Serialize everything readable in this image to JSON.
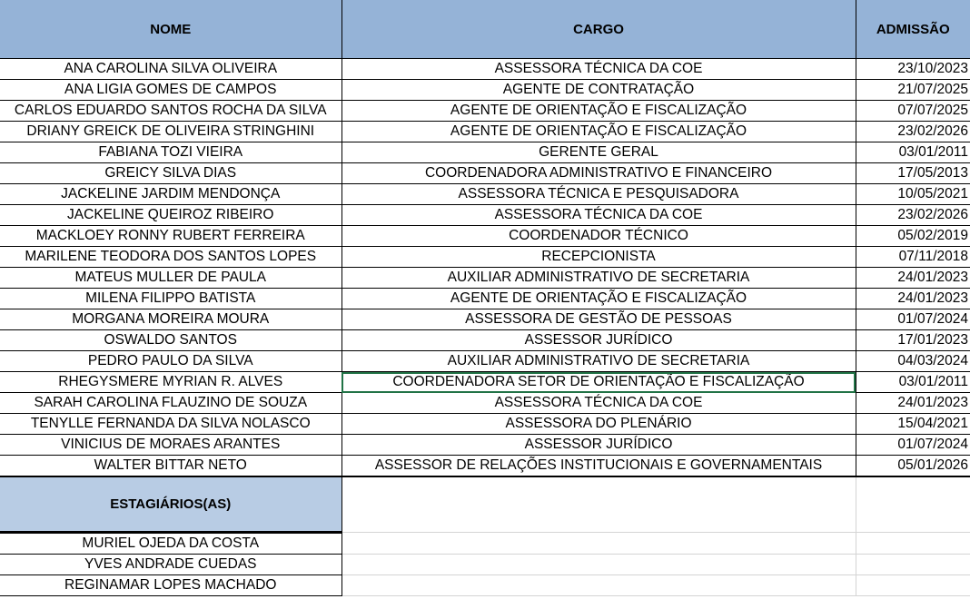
{
  "headers": {
    "nome": "NOME",
    "cargo": "CARGO",
    "admissao": "ADMISSÃO"
  },
  "rows": [
    {
      "nome": "ANA CAROLINA SILVA OLIVEIRA",
      "cargo": "ASSESSORA TÉCNICA DA COE",
      "admissao": "23/10/2023"
    },
    {
      "nome": "ANA LIGIA GOMES DE CAMPOS",
      "cargo": "AGENTE DE CONTRATAÇÃO",
      "admissao": "21/07/2025"
    },
    {
      "nome": "CARLOS EDUARDO SANTOS ROCHA DA SILVA",
      "cargo": "AGENTE DE ORIENTAÇÃO E FISCALIZAÇÃO",
      "admissao": "07/07/2025"
    },
    {
      "nome": "DRIANY GREICK DE OLIVEIRA STRINGHINI",
      "cargo": "AGENTE DE ORIENTAÇÃO E FISCALIZAÇÃO",
      "admissao": "23/02/2026"
    },
    {
      "nome": "FABIANA TOZI VIEIRA",
      "cargo": "GERENTE GERAL",
      "admissao": "03/01/2011"
    },
    {
      "nome": "GREICY SILVA DIAS",
      "cargo": "COORDENADORA ADMINISTRATIVO E FINANCEIRO",
      "admissao": "17/05/2013"
    },
    {
      "nome": "JACKELINE JARDIM MENDONÇA",
      "cargo": "ASSESSORA TÉCNICA E PESQUISADORA",
      "admissao": "10/05/2021"
    },
    {
      "nome": "JACKELINE QUEIROZ RIBEIRO",
      "cargo": "ASSESSORA TÉCNICA DA COE",
      "admissao": "23/02/2026"
    },
    {
      "nome": "MACKLOEY RONNY RUBERT FERREIRA",
      "cargo": "COORDENADOR TÉCNICO",
      "admissao": "05/02/2019"
    },
    {
      "nome": "MARILENE TEODORA DOS SANTOS LOPES",
      "cargo": "RECEPCIONISTA",
      "admissao": "07/11/2018"
    },
    {
      "nome": "MATEUS MULLER DE PAULA",
      "cargo": "AUXILIAR ADMINISTRATIVO DE SECRETARIA",
      "admissao": "24/01/2023"
    },
    {
      "nome": "MILENA FILIPPO BATISTA",
      "cargo": "AGENTE DE ORIENTAÇÃO E FISCALIZAÇÃO",
      "admissao": "24/01/2023"
    },
    {
      "nome": "MORGANA MOREIRA MOURA",
      "cargo": "ASSESSORA DE GESTÃO DE PESSOAS",
      "admissao": "01/07/2024"
    },
    {
      "nome": "OSWALDO SANTOS",
      "cargo": "ASSESSOR JURÍDICO",
      "admissao": "17/01/2023"
    },
    {
      "nome": "PEDRO PAULO DA SILVA",
      "cargo": "AUXILIAR ADMINISTRATIVO DE SECRETARIA",
      "admissao": "04/03/2024"
    },
    {
      "nome": "RHEGYSMERE MYRIAN R. ALVES",
      "cargo": "COORDENADORA SETOR DE ORIENTAÇÃO E FISCALIZAÇÃO",
      "admissao": "03/01/2011"
    },
    {
      "nome": "SARAH CAROLINA FLAUZINO DE SOUZA",
      "cargo": "ASSESSORA TÉCNICA DA COE",
      "admissao": "24/01/2023"
    },
    {
      "nome": "TENYLLE FERNANDA DA SILVA NOLASCO",
      "cargo": "ASSESSORA DO PLENÁRIO",
      "admissao": "15/04/2021"
    },
    {
      "nome": "VINICIUS DE MORAES ARANTES",
      "cargo": "ASSESSOR JURÍDICO",
      "admissao": "01/07/2024"
    },
    {
      "nome": "WALTER BITTAR NETO",
      "cargo": "ASSESSOR DE RELAÇÕES INSTITUCIONAIS E GOVERNAMENTAIS",
      "admissao": "05/01/2026"
    }
  ],
  "selected_cell": {
    "row": 15,
    "column": "cargo"
  },
  "interns": {
    "header": "ESTAGIÁRIOS(AS)",
    "names": [
      "MURIEL OJEDA DA COSTA",
      "YVES ANDRADE CUEDAS",
      "REGINAMAR LOPES MACHADO"
    ]
  },
  "colors": {
    "header_bg": "#95b3d7",
    "intern_header_bg": "#b8cce4",
    "selection": "#217346"
  }
}
